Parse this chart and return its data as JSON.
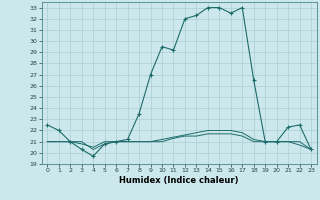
{
  "xlabel": "Humidex (Indice chaleur)",
  "background_color": "#cce8ec",
  "line_color": "#1e6b6b",
  "grid_color": "#aacfd4",
  "xlim": [
    -0.5,
    23.5
  ],
  "ylim": [
    19,
    33.5
  ],
  "yticks": [
    19,
    20,
    21,
    22,
    23,
    24,
    25,
    26,
    27,
    28,
    29,
    30,
    31,
    32,
    33
  ],
  "xticks": [
    0,
    1,
    2,
    3,
    4,
    5,
    6,
    7,
    8,
    9,
    10,
    11,
    12,
    13,
    14,
    15,
    16,
    17,
    18,
    19,
    20,
    21,
    22,
    23
  ],
  "line1_x": [
    0,
    1,
    2,
    3,
    4,
    5,
    6,
    7,
    8,
    9,
    10,
    11,
    12,
    13,
    14,
    15,
    16,
    17,
    18,
    19,
    20,
    21,
    22,
    23
  ],
  "line1_y": [
    22.5,
    22.0,
    21.0,
    20.3,
    19.7,
    20.8,
    21.0,
    21.2,
    23.5,
    27.0,
    29.5,
    29.2,
    32.0,
    32.3,
    33.0,
    33.0,
    32.5,
    33.0,
    26.5,
    21.0,
    21.0,
    22.3,
    22.5,
    20.3
  ],
  "line2_x": [
    0,
    1,
    2,
    3,
    4,
    5,
    6,
    7,
    8,
    9,
    10,
    11,
    12,
    13,
    14,
    15,
    16,
    17,
    18,
    19,
    20,
    21,
    22,
    23
  ],
  "line2_y": [
    21.0,
    21.0,
    21.0,
    21.0,
    20.3,
    20.8,
    21.0,
    21.0,
    21.0,
    21.0,
    21.2,
    21.4,
    21.6,
    21.8,
    22.0,
    22.0,
    22.0,
    21.8,
    21.2,
    21.0,
    21.0,
    21.0,
    21.0,
    20.3
  ],
  "line3_x": [
    0,
    1,
    2,
    3,
    4,
    5,
    6,
    7,
    8,
    9,
    10,
    11,
    12,
    13,
    14,
    15,
    16,
    17,
    18,
    19,
    20,
    21,
    22,
    23
  ],
  "line3_y": [
    21.0,
    21.0,
    21.0,
    20.8,
    20.5,
    21.0,
    21.0,
    21.0,
    21.0,
    21.0,
    21.0,
    21.3,
    21.5,
    21.5,
    21.7,
    21.7,
    21.7,
    21.5,
    21.0,
    21.0,
    21.0,
    21.0,
    20.7,
    20.3
  ]
}
